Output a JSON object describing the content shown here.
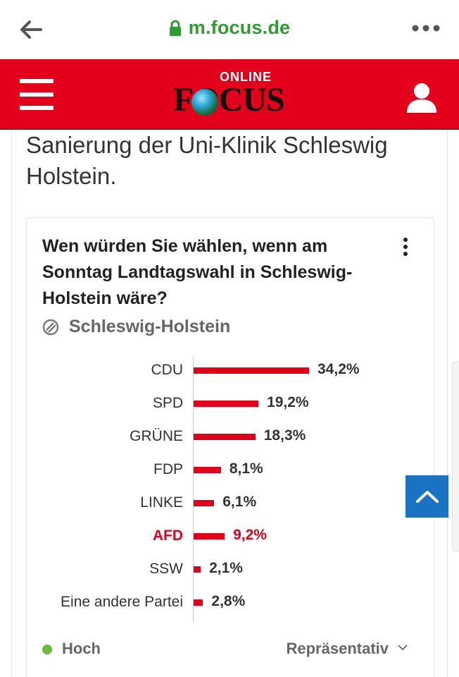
{
  "browser": {
    "url": "m.focus.de"
  },
  "header": {
    "logo_online": "ONLINE",
    "logo_focus": "FOCUS"
  },
  "article": {
    "text": "Sanierung der Uni-Klinik Schleswig Holstein."
  },
  "poll": {
    "question": "Wen würden Sie wählen, wenn am Sonntag Landtagswahl in Schleswig-Holstein wäre?",
    "location": "Schleswig-Holstein",
    "status": "Hoch",
    "filter": "Repräsentativ"
  },
  "chart_data": {
    "type": "bar",
    "orientation": "horizontal",
    "categories": [
      "CDU",
      "SPD",
      "GRÜNE",
      "FDP",
      "LINKE",
      "AFD",
      "SSW",
      "Eine andere Partei"
    ],
    "values": [
      34.2,
      19.2,
      18.3,
      8.1,
      6.1,
      9.2,
      2.1,
      2.8
    ],
    "value_labels": [
      "34,2%",
      "19,2%",
      "18,3%",
      "8,1%",
      "6,1%",
      "9,2%",
      "2,1%",
      "2,8%"
    ],
    "highlighted_category": "AFD",
    "bar_color": "#e2001a",
    "highlight_label_color": "#e2001a",
    "xlim": [
      0,
      34.2
    ]
  },
  "colors": {
    "brand_red": "#e2001a",
    "url_green": "#2e9c33",
    "status_green": "#6dbb3e",
    "scroll_button_blue": "#1a73c2"
  },
  "icons": {
    "back": "back-arrow-icon",
    "lock": "lock-icon",
    "more": "more-dots-icon",
    "menu": "hamburger-menu-icon",
    "user": "user-icon",
    "kebab": "kebab-menu-icon",
    "location": "location-icon",
    "chevron": "chevron-down-icon",
    "scroll_up": "chevron-up-icon"
  }
}
